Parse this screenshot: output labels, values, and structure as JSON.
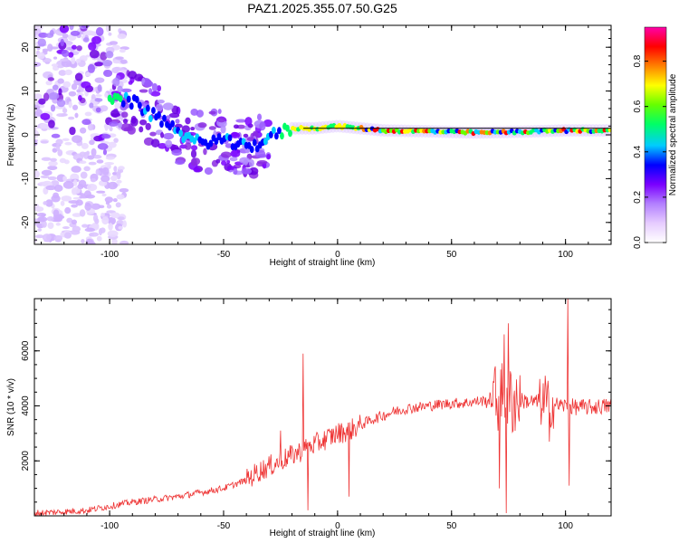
{
  "figure_title": "PAZ1.2025.355.07.50.G25",
  "chart_data": [
    {
      "type": "heatmap",
      "title": "PAZ1.2025.355.07.50.G25",
      "xlabel": "Height of straight line (km)",
      "ylabel": "Frequency (Hz)",
      "xlim": [
        -133,
        120
      ],
      "ylim": [
        -25,
        25
      ],
      "xticks": [
        -100,
        -50,
        0,
        50,
        100
      ],
      "yticks": [
        -20,
        -10,
        0,
        10,
        20
      ],
      "xtick_labels": [
        "-100",
        "-50",
        "0",
        "50",
        "100"
      ],
      "ytick_labels": [
        "-20",
        "-10",
        "0",
        "10",
        "20"
      ],
      "colorbar": {
        "label": "Normalized spectral amplitude",
        "range": [
          0,
          0.95
        ],
        "ticks": [
          0,
          0.2,
          0.4,
          0.6,
          0.8
        ],
        "tick_labels": [
          "0.0",
          "0.2",
          "0.4",
          "0.6",
          "0.8"
        ],
        "colors": [
          "#ffffff",
          "#e6ccff",
          "#b380ff",
          "#7a00ff",
          "#0000ff",
          "#00ccff",
          "#00ff66",
          "#66ff00",
          "#ffff00",
          "#ff8000",
          "#ff0000",
          "#ff00aa"
        ]
      },
      "ridge": [
        {
          "x": -100,
          "y": 8.5
        },
        {
          "x": -95,
          "y": 8
        },
        {
          "x": -90,
          "y": 7.5
        },
        {
          "x": -85,
          "y": 6
        },
        {
          "x": -80,
          "y": 4
        },
        {
          "x": -75,
          "y": 3
        },
        {
          "x": -70,
          "y": 1
        },
        {
          "x": -65,
          "y": -1
        },
        {
          "x": -60,
          "y": -2
        },
        {
          "x": -55,
          "y": -1
        },
        {
          "x": -50,
          "y": -1.5
        },
        {
          "x": -45,
          "y": -2
        },
        {
          "x": -40,
          "y": -3
        },
        {
          "x": -35,
          "y": -2
        },
        {
          "x": -30,
          "y": -0.5
        },
        {
          "x": -25,
          "y": 0.5
        },
        {
          "x": -20,
          "y": 1.5
        },
        {
          "x": -10,
          "y": 1.5
        },
        {
          "x": 0,
          "y": 2
        },
        {
          "x": 10,
          "y": 1.5
        },
        {
          "x": 20,
          "y": 1
        },
        {
          "x": 40,
          "y": 0.8
        },
        {
          "x": 60,
          "y": 0.5
        },
        {
          "x": 80,
          "y": 0.7
        },
        {
          "x": 100,
          "y": 1
        },
        {
          "x": 120,
          "y": 1
        }
      ],
      "line": {
        "x": [
          -15,
          120
        ],
        "y": [
          1.5,
          1.5
        ],
        "color": "#000000"
      }
    },
    {
      "type": "line",
      "xlabel": "Height of straight line (km)",
      "ylabel": "SNR (10 * v/v)",
      "xlim": [
        -133,
        120
      ],
      "ylim": [
        0,
        7900
      ],
      "xticks": [
        -100,
        -50,
        0,
        50,
        100
      ],
      "yticks": [
        2000,
        4000,
        6000
      ],
      "xtick_labels": [
        "-100",
        "-50",
        "0",
        "50",
        "100"
      ],
      "ytick_labels": [
        "2000",
        "4000",
        "6000"
      ],
      "color": "#ee3333",
      "series": [
        {
          "name": "SNR",
          "x": [
            -133,
            -120,
            -110,
            -100,
            -90,
            -80,
            -70,
            -60,
            -50,
            -45,
            -40,
            -35,
            -30,
            -25,
            -20,
            -15,
            -10,
            -5,
            0,
            5,
            10,
            15,
            20,
            25,
            30,
            35,
            40,
            45,
            50,
            55,
            60,
            65,
            70,
            75,
            80,
            85,
            90,
            95,
            100,
            105,
            110,
            120
          ],
          "values": [
            100,
            150,
            200,
            350,
            500,
            600,
            700,
            850,
            1000,
            1150,
            1300,
            1600,
            1800,
            2000,
            2200,
            2400,
            2600,
            2800,
            3000,
            3100,
            3300,
            3500,
            3650,
            3800,
            3900,
            3950,
            4000,
            4050,
            4100,
            4100,
            4150,
            4200,
            4200,
            4250,
            4200,
            4150,
            4100,
            4050,
            4000,
            3950,
            3950,
            4000
          ]
        }
      ],
      "spikes": [
        {
          "x": -15,
          "value": 5900
        },
        {
          "x": -13,
          "value": 200
        },
        {
          "x": -25,
          "value": 3100
        },
        {
          "x": 5,
          "value": 700
        },
        {
          "x": 73,
          "value": 6600
        },
        {
          "x": 75,
          "value": 7000
        },
        {
          "x": 74,
          "value": 100
        },
        {
          "x": 71,
          "value": 1000
        },
        {
          "x": 101,
          "value": 7900
        },
        {
          "x": 101.5,
          "value": 1100
        },
        {
          "x": 91,
          "value": 5100
        },
        {
          "x": 93,
          "value": 2700
        }
      ]
    }
  ]
}
